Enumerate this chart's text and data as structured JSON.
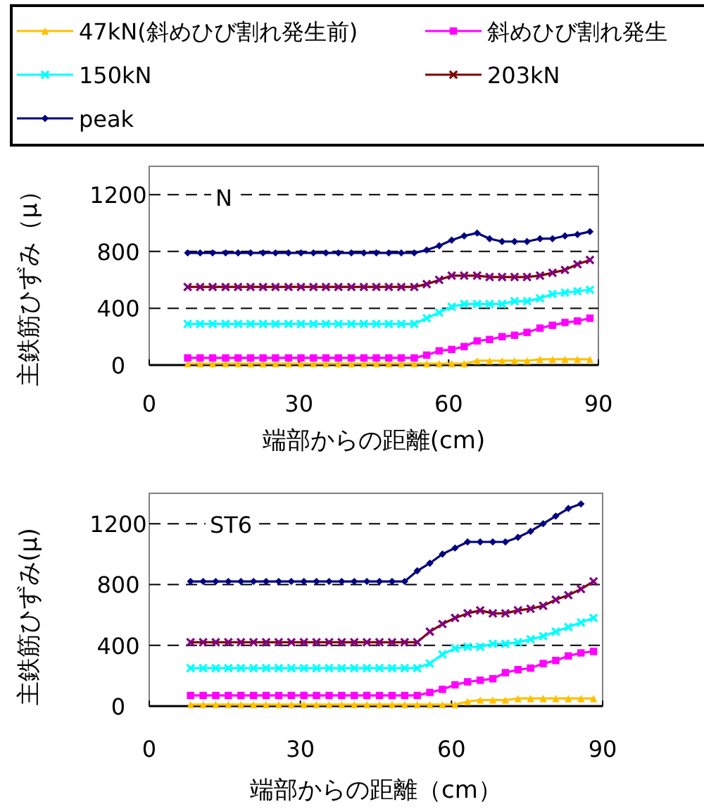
{
  "chart_data": [
    {
      "type": "line",
      "xlabel": "端部からの距離(cm)",
      "ylabel": "主鉄筋ひずみ（μ）",
      "annotations": [
        "N"
      ],
      "xlim": [
        0,
        90
      ],
      "ylim": [
        0,
        1400
      ],
      "xticks": [
        0,
        30,
        60,
        90
      ],
      "yticks": [
        0,
        400,
        800,
        1200
      ],
      "grid": "y",
      "legend": "top",
      "x": [
        7.7,
        10.2,
        12.7,
        15.3,
        17.8,
        20.3,
        22.8,
        25.3,
        27.9,
        30.4,
        32.9,
        35.4,
        37.9,
        40.5,
        43,
        45.5,
        48,
        50.5,
        53.1,
        55.6,
        58.1,
        60.6,
        63.1,
        65.7,
        68.2,
        70.7,
        73.2,
        75.7,
        78.3,
        80.8,
        83.3,
        85.8,
        88.3
      ],
      "series": [
        {
          "name": "47kN(斜めひび割れ発生前)",
          "color": "#ffc000",
          "marker": "triangle",
          "values": [
            10,
            10,
            10,
            10,
            10,
            10,
            10,
            10,
            10,
            10,
            10,
            10,
            10,
            10,
            10,
            10,
            10,
            10,
            10,
            10,
            10,
            10,
            10,
            30,
            30,
            30,
            30,
            30,
            40,
            40,
            40,
            40,
            40
          ]
        },
        {
          "name": "斜めひび割れ発生",
          "color": "#ff00ff",
          "marker": "square",
          "values": [
            50,
            50,
            50,
            50,
            50,
            50,
            50,
            50,
            50,
            50,
            50,
            50,
            50,
            50,
            50,
            50,
            50,
            50,
            50,
            70,
            100,
            110,
            130,
            170,
            180,
            200,
            210,
            230,
            260,
            280,
            300,
            310,
            330
          ]
        },
        {
          "name": "150kN",
          "color": "#00ffff",
          "marker": "cross",
          "values": [
            290,
            290,
            290,
            290,
            290,
            290,
            290,
            290,
            290,
            290,
            290,
            290,
            290,
            290,
            290,
            290,
            290,
            290,
            290,
            330,
            370,
            410,
            430,
            430,
            430,
            430,
            450,
            450,
            470,
            500,
            510,
            520,
            530
          ]
        },
        {
          "name": "203kN",
          "color": "#800000",
          "marker": "cross",
          "values": [
            550,
            550,
            550,
            550,
            550,
            550,
            550,
            550,
            550,
            550,
            550,
            550,
            550,
            550,
            550,
            550,
            550,
            550,
            550,
            570,
            600,
            630,
            630,
            630,
            620,
            620,
            620,
            620,
            630,
            650,
            670,
            710,
            740
          ]
        },
        {
          "name": "peak",
          "color": "#000080",
          "marker": "diamond",
          "values": [
            790,
            790,
            790,
            790,
            790,
            790,
            790,
            790,
            790,
            790,
            790,
            790,
            790,
            790,
            790,
            790,
            790,
            790,
            790,
            810,
            840,
            880,
            910,
            930,
            890,
            870,
            870,
            870,
            890,
            890,
            910,
            920,
            940
          ]
        }
      ]
    },
    {
      "type": "line",
      "xlabel": "端部からの距離（cm）",
      "ylabel": "主鉄筋ひずみ(μ)",
      "annotations": [
        "ST6"
      ],
      "xlim": [
        0,
        90
      ],
      "ylim": [
        0,
        1400
      ],
      "xticks": [
        0,
        30,
        60,
        90
      ],
      "yticks": [
        0,
        400,
        800,
        1200
      ],
      "grid": "y",
      "x": [
        8.2,
        10.7,
        13.2,
        15.7,
        18.2,
        20.7,
        23.2,
        25.7,
        28.2,
        30.7,
        33.2,
        35.7,
        38.2,
        40.7,
        43.2,
        45.7,
        48.2,
        50.7,
        53.2,
        55.7,
        58.2,
        60.7,
        63.2,
        65.7,
        68.2,
        70.7,
        73.2,
        75.7,
        78.2,
        80.7,
        83.2,
        85.7,
        88.2
      ],
      "series": [
        {
          "color": "#ffc000",
          "marker": "triangle",
          "values": [
            10,
            10,
            10,
            10,
            10,
            10,
            10,
            10,
            10,
            10,
            10,
            10,
            10,
            10,
            10,
            10,
            10,
            10,
            10,
            10,
            10,
            10,
            30,
            40,
            40,
            40,
            50,
            50,
            50,
            50,
            50,
            50,
            50
          ]
        },
        {
          "color": "#ff00ff",
          "marker": "square",
          "values": [
            70,
            70,
            70,
            70,
            70,
            70,
            70,
            70,
            70,
            70,
            70,
            70,
            70,
            70,
            70,
            70,
            70,
            70,
            70,
            90,
            110,
            140,
            160,
            170,
            180,
            220,
            240,
            250,
            280,
            300,
            330,
            350,
            360
          ]
        },
        {
          "color": "#00ffff",
          "marker": "cross",
          "values": [
            250,
            250,
            250,
            250,
            250,
            250,
            250,
            250,
            250,
            250,
            250,
            250,
            250,
            250,
            250,
            250,
            250,
            250,
            250,
            280,
            340,
            380,
            390,
            390,
            410,
            410,
            420,
            440,
            460,
            490,
            520,
            550,
            580
          ]
        },
        {
          "color": "#800000",
          "marker": "cross",
          "values": [
            420,
            420,
            420,
            420,
            420,
            420,
            420,
            420,
            420,
            420,
            420,
            420,
            420,
            420,
            420,
            420,
            420,
            420,
            420,
            490,
            540,
            580,
            610,
            630,
            610,
            610,
            630,
            640,
            660,
            700,
            730,
            770,
            820
          ]
        },
        {
          "color": "#000080",
          "marker": "diamond",
          "values": [
            820,
            820,
            820,
            820,
            820,
            820,
            820,
            820,
            820,
            820,
            820,
            820,
            820,
            820,
            820,
            820,
            820,
            820,
            890,
            940,
            1000,
            1040,
            1080,
            1080,
            1080,
            1080,
            1110,
            1150,
            1200,
            1250,
            1300,
            1330,
            null
          ]
        }
      ]
    }
  ]
}
